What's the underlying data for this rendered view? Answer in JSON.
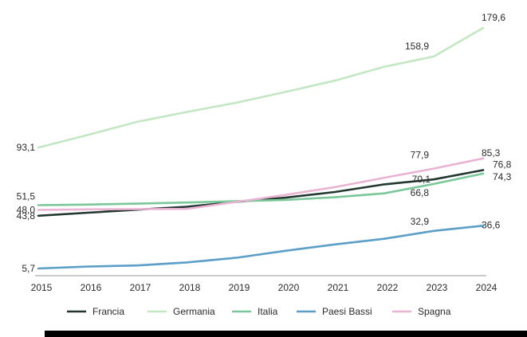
{
  "chart_data": {
    "type": "line",
    "x": [
      "2015",
      "2016",
      "2017",
      "2018",
      "2019",
      "2020",
      "2021",
      "2022",
      "2023",
      "2024"
    ],
    "ylim": [
      0,
      190
    ],
    "grid": false,
    "legend": "bottom",
    "series": [
      {
        "name": "Francia",
        "color": "#22372f",
        "values": [
          43.8,
          46.0,
          48.2,
          50.3,
          53.8,
          56.9,
          61.0,
          66.5,
          70.1,
          76.8
        ],
        "labels": [
          {
            "i": 0,
            "text": "43,8"
          },
          {
            "i": 8,
            "text": "70,1"
          },
          {
            "i": 9,
            "text": "76,8"
          }
        ]
      },
      {
        "name": "Germania",
        "color": "#c3e6c3",
        "values": [
          93.1,
          102.2,
          111.7,
          118.8,
          125.5,
          133.3,
          141.5,
          151.5,
          158.9,
          179.6
        ],
        "labels": [
          {
            "i": 0,
            "text": "93,1"
          },
          {
            "i": 8,
            "text": "158,9"
          },
          {
            "i": 9,
            "text": "179,6"
          }
        ]
      },
      {
        "name": "Italia",
        "color": "#7ac79a",
        "values": [
          51.5,
          51.9,
          52.6,
          53.4,
          54.3,
          55.3,
          57.2,
          60.0,
          66.8,
          74.3
        ],
        "labels": [
          {
            "i": 0,
            "text": "51,5"
          },
          {
            "i": 8,
            "text": "66,8"
          },
          {
            "i": 9,
            "text": "74,3"
          }
        ]
      },
      {
        "name": "Paesi Bassi",
        "color": "#5b9ec8",
        "values": [
          5.7,
          7.1,
          7.9,
          10.1,
          13.4,
          18.5,
          23.1,
          27.2,
          32.9,
          36.6
        ],
        "labels": [
          {
            "i": 0,
            "text": "5,7"
          },
          {
            "i": 8,
            "text": "32,9"
          },
          {
            "i": 9,
            "text": "36,6"
          }
        ]
      },
      {
        "name": "Spagna",
        "color": "#ebb3d3",
        "values": [
          48.0,
          48.4,
          48.6,
          48.8,
          53.8,
          58.9,
          64.5,
          71.3,
          77.9,
          85.3
        ],
        "labels": [
          {
            "i": 0,
            "text": "48,0"
          },
          {
            "i": 8,
            "text": "77,9"
          },
          {
            "i": 9,
            "text": "85,3"
          }
        ]
      }
    ]
  }
}
